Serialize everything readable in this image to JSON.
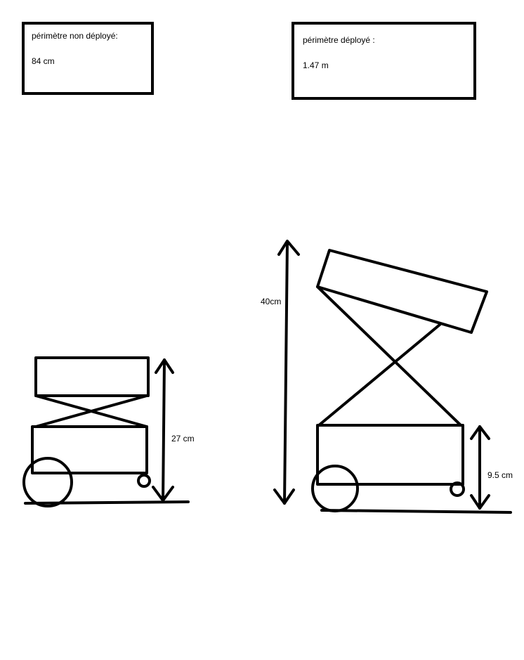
{
  "boxes": {
    "non_deploye": {
      "label": "périmètre non déployé:",
      "value": "84 cm"
    },
    "deploye": {
      "label": "périmètre déployé :",
      "value": "1.47 m"
    }
  },
  "dimensions": {
    "folded_height": "27 cm",
    "deployed_height": "40cm",
    "chassis_height": "9.5 cm"
  },
  "colors": {
    "ink": "#000000",
    "background": "#ffffff"
  }
}
